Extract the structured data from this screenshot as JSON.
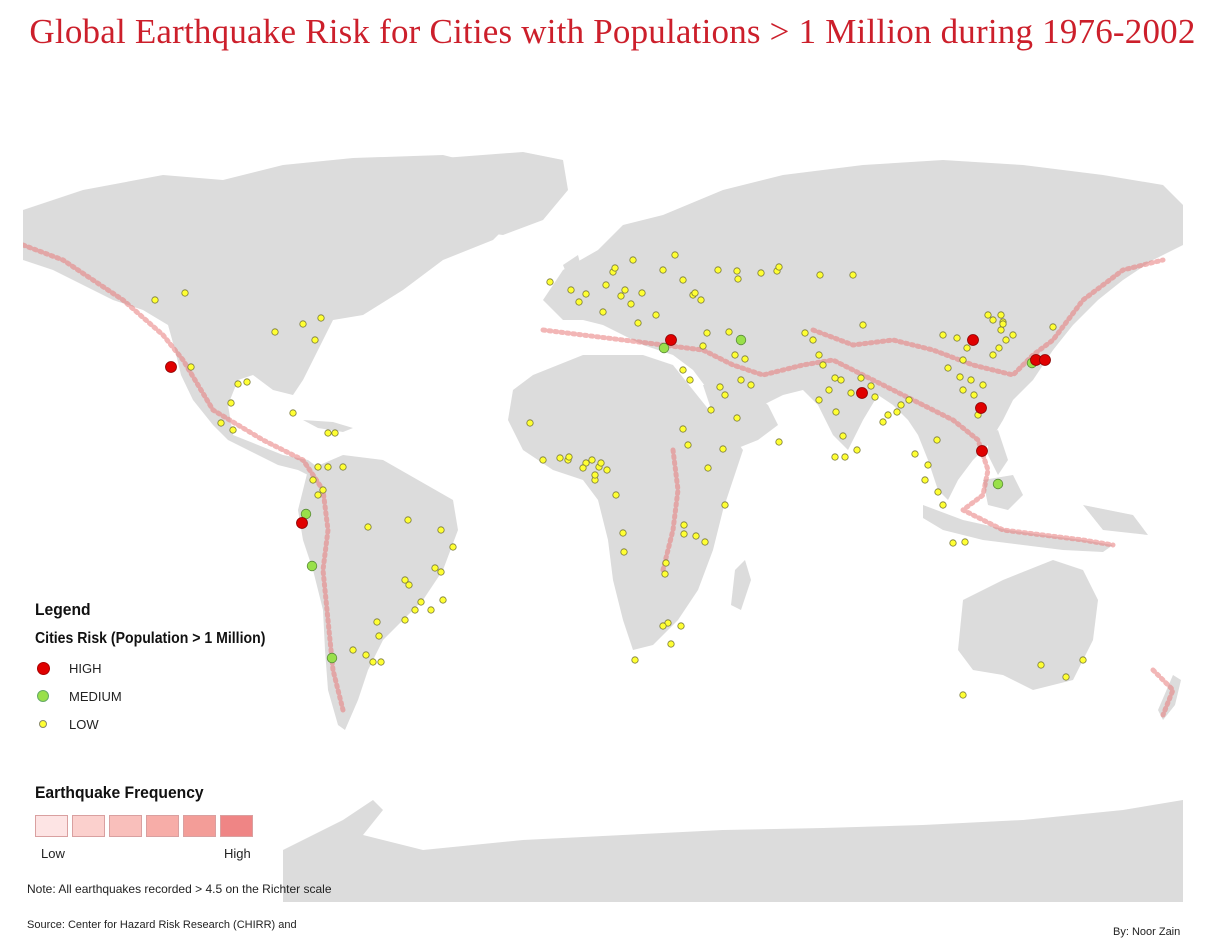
{
  "title": "Global Earthquake Risk for Cities with Populations > 1 Million during 1976-2002",
  "legend": {
    "heading": "Legend",
    "cities_title": "Cities Risk (Population > 1 Million)",
    "levels": [
      {
        "label": "HIGH",
        "color": "#e00000"
      },
      {
        "label": "MEDIUM",
        "color": "#99e04a"
      },
      {
        "label": "LOW",
        "color": "#ffff33"
      }
    ],
    "frequency_title": "Earthquake Frequency",
    "frequency_colors": [
      "#fde4e4",
      "#fbd0cd",
      "#f9bfbb",
      "#f7ada8",
      "#f39d98",
      "#ef8585"
    ],
    "frequency_low": "Low",
    "frequency_high": "High"
  },
  "note": "Note: All earthquakes recorded > 4.5 on the Richter scale",
  "source": "Source: Center for Hazard Risk Research (CHIRR) and",
  "author": "By: Noor Zain",
  "colors": {
    "land": "#dcdcdc",
    "map_background": "#ffffff",
    "quake": "#e87a7a"
  }
}
